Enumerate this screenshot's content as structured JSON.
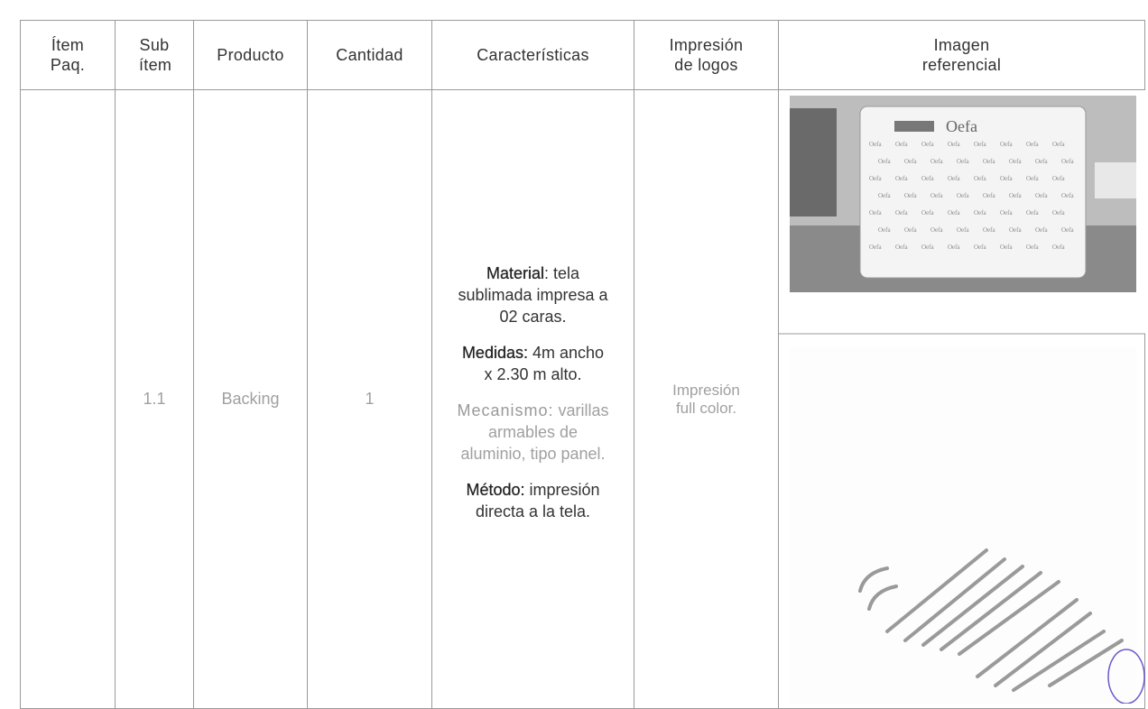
{
  "header": {
    "item_paq": "Ítem Paq.",
    "sub_item": "Sub ítem",
    "producto": "Producto",
    "cantidad": "Cantidad",
    "caracteristicas": "Características",
    "impresion": "Impresión de logos",
    "imagen": "Imagen referencial"
  },
  "row": {
    "sub_item": "1.1",
    "producto": "Backing",
    "cantidad": "1",
    "caracteristicas": [
      {
        "label": "Material",
        "text": ": tela sublimada impresa a 02 caras."
      },
      {
        "label": "Medidas:",
        "text": " 4m ancho x 2.30 m alto."
      },
      {
        "label": "Mecanismo:",
        "text": " varillas armables de aluminio, tipo panel."
      },
      {
        "label": "Método:",
        "text": " impresión directa a la tela."
      }
    ],
    "impresion": "Impresión full color.",
    "logo_text": "Oefa"
  }
}
